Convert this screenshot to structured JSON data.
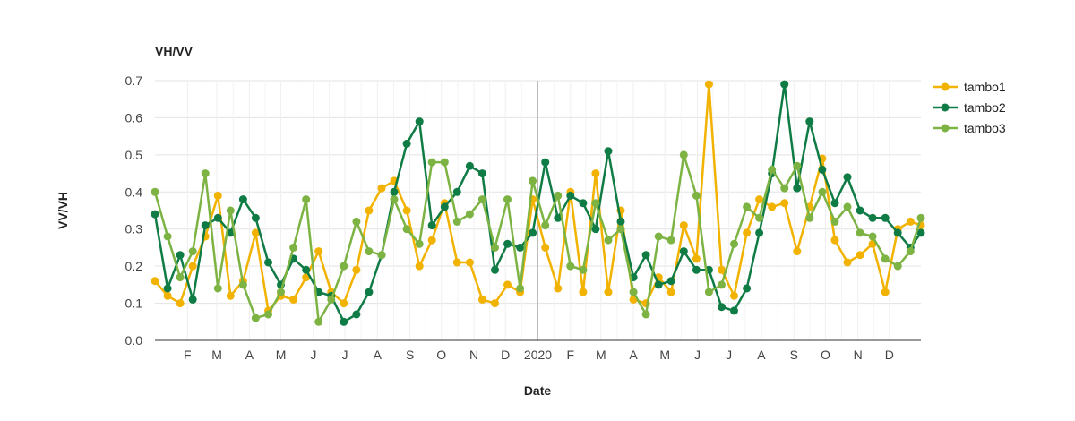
{
  "chart_data": {
    "type": "line",
    "title": "VH/VV",
    "xlabel": "Date",
    "ylabel": "VV/VH",
    "ylim": [
      0,
      0.7
    ],
    "yticks": [
      "0.0",
      "0.1",
      "0.2",
      "0.3",
      "0.4",
      "0.5",
      "0.6",
      "0.7"
    ],
    "xlim": [
      "2019-01-01",
      "2020-12-31"
    ],
    "xticks": [
      {
        "label": "F",
        "date": "2019-02-01"
      },
      {
        "label": "M",
        "date": "2019-03-01"
      },
      {
        "label": "A",
        "date": "2019-04-01"
      },
      {
        "label": "M",
        "date": "2019-05-01"
      },
      {
        "label": "J",
        "date": "2019-06-01"
      },
      {
        "label": "J",
        "date": "2019-07-01"
      },
      {
        "label": "A",
        "date": "2019-08-01"
      },
      {
        "label": "S",
        "date": "2019-09-01"
      },
      {
        "label": "O",
        "date": "2019-10-01"
      },
      {
        "label": "N",
        "date": "2019-11-01"
      },
      {
        "label": "D",
        "date": "2019-12-01"
      },
      {
        "label": "2020",
        "date": "2020-01-01"
      },
      {
        "label": "F",
        "date": "2020-02-01"
      },
      {
        "label": "M",
        "date": "2020-03-01"
      },
      {
        "label": "A",
        "date": "2020-04-01"
      },
      {
        "label": "M",
        "date": "2020-05-01"
      },
      {
        "label": "J",
        "date": "2020-06-01"
      },
      {
        "label": "J",
        "date": "2020-07-01"
      },
      {
        "label": "A",
        "date": "2020-08-01"
      },
      {
        "label": "S",
        "date": "2020-09-01"
      },
      {
        "label": "O",
        "date": "2020-10-01"
      },
      {
        "label": "N",
        "date": "2020-11-01"
      },
      {
        "label": "D",
        "date": "2020-12-01"
      }
    ],
    "grid": true,
    "legend_position": "right-top",
    "series": [
      {
        "name": "tambo1",
        "color": "#f2b200",
        "x": [
          "2019-01-01",
          "2019-01-13",
          "2019-01-25",
          "2019-02-06",
          "2019-02-18",
          "2019-03-02",
          "2019-03-14",
          "2019-03-26",
          "2019-04-07",
          "2019-04-19",
          "2019-05-01",
          "2019-05-13",
          "2019-05-25",
          "2019-06-06",
          "2019-06-18",
          "2019-06-30",
          "2019-07-12",
          "2019-07-24",
          "2019-08-05",
          "2019-08-17",
          "2019-08-29",
          "2019-09-10",
          "2019-09-22",
          "2019-10-04",
          "2019-10-16",
          "2019-10-28",
          "2019-11-09",
          "2019-11-21",
          "2019-12-03",
          "2019-12-15",
          "2019-12-27",
          "2020-01-08",
          "2020-01-20",
          "2020-02-01",
          "2020-02-13",
          "2020-02-25",
          "2020-03-08",
          "2020-03-20",
          "2020-04-01",
          "2020-04-13",
          "2020-04-25",
          "2020-05-07",
          "2020-05-19",
          "2020-05-31",
          "2020-06-12",
          "2020-06-24",
          "2020-07-06",
          "2020-07-18",
          "2020-07-30",
          "2020-08-11",
          "2020-08-23",
          "2020-09-04",
          "2020-09-16",
          "2020-09-28",
          "2020-10-10",
          "2020-10-22",
          "2020-11-03",
          "2020-11-15",
          "2020-11-27",
          "2020-12-09",
          "2020-12-21",
          "2020-12-31"
        ],
        "y": [
          0.16,
          0.12,
          0.1,
          0.2,
          0.28,
          0.39,
          0.12,
          0.16,
          0.29,
          0.08,
          0.12,
          0.11,
          0.17,
          0.24,
          0.13,
          0.1,
          0.19,
          0.35,
          0.41,
          0.43,
          0.35,
          0.2,
          0.27,
          0.37,
          0.21,
          0.21,
          0.11,
          0.1,
          0.15,
          0.13,
          0.38,
          0.25,
          0.14,
          0.4,
          0.13,
          0.45,
          0.13,
          0.35,
          0.11,
          0.1,
          0.17,
          0.13,
          0.31,
          0.22,
          0.69,
          0.19,
          0.12,
          0.29,
          0.38,
          0.36,
          0.37,
          0.24,
          0.36,
          0.49,
          0.27,
          0.21,
          0.23,
          0.26,
          0.13,
          0.3,
          0.32,
          0.31
        ]
      },
      {
        "name": "tambo2",
        "color": "#0f7b45",
        "x": [
          "2019-01-01",
          "2019-01-13",
          "2019-01-25",
          "2019-02-06",
          "2019-02-18",
          "2019-03-02",
          "2019-03-14",
          "2019-03-26",
          "2019-04-07",
          "2019-04-19",
          "2019-05-01",
          "2019-05-13",
          "2019-05-25",
          "2019-06-06",
          "2019-06-18",
          "2019-06-30",
          "2019-07-12",
          "2019-07-24",
          "2019-08-05",
          "2019-08-17",
          "2019-08-29",
          "2019-09-10",
          "2019-09-22",
          "2019-10-04",
          "2019-10-16",
          "2019-10-28",
          "2019-11-09",
          "2019-11-21",
          "2019-12-03",
          "2019-12-15",
          "2019-12-27",
          "2020-01-08",
          "2020-01-20",
          "2020-02-01",
          "2020-02-13",
          "2020-02-25",
          "2020-03-08",
          "2020-03-20",
          "2020-04-01",
          "2020-04-13",
          "2020-04-25",
          "2020-05-07",
          "2020-05-19",
          "2020-05-31",
          "2020-06-12",
          "2020-06-24",
          "2020-07-06",
          "2020-07-18",
          "2020-07-30",
          "2020-08-11",
          "2020-08-23",
          "2020-09-04",
          "2020-09-16",
          "2020-09-28",
          "2020-10-10",
          "2020-10-22",
          "2020-11-03",
          "2020-11-15",
          "2020-11-27",
          "2020-12-09",
          "2020-12-21",
          "2020-12-31"
        ],
        "y": [
          0.34,
          0.14,
          0.23,
          0.11,
          0.31,
          0.33,
          0.29,
          0.38,
          0.33,
          0.21,
          0.15,
          0.22,
          0.19,
          0.13,
          0.12,
          0.05,
          0.07,
          0.13,
          0.23,
          0.4,
          0.53,
          0.59,
          0.31,
          0.36,
          0.4,
          0.47,
          0.45,
          0.19,
          0.26,
          0.25,
          0.29,
          0.48,
          0.33,
          0.39,
          0.37,
          0.3,
          0.51,
          0.32,
          0.17,
          0.23,
          0.15,
          0.16,
          0.24,
          0.19,
          0.19,
          0.09,
          0.08,
          0.14,
          0.29,
          0.45,
          0.69,
          0.41,
          0.59,
          0.46,
          0.37,
          0.44,
          0.35,
          0.33,
          0.33,
          0.29,
          0.25,
          0.29
        ]
      },
      {
        "name": "tambo3",
        "color": "#7cb342",
        "x": [
          "2019-01-01",
          "2019-01-13",
          "2019-01-25",
          "2019-02-06",
          "2019-02-18",
          "2019-03-02",
          "2019-03-14",
          "2019-03-26",
          "2019-04-07",
          "2019-04-19",
          "2019-05-01",
          "2019-05-13",
          "2019-05-25",
          "2019-06-06",
          "2019-06-18",
          "2019-06-30",
          "2019-07-12",
          "2019-07-24",
          "2019-08-05",
          "2019-08-17",
          "2019-08-29",
          "2019-09-10",
          "2019-09-22",
          "2019-10-04",
          "2019-10-16",
          "2019-10-28",
          "2019-11-09",
          "2019-11-21",
          "2019-12-03",
          "2019-12-15",
          "2019-12-27",
          "2020-01-08",
          "2020-01-20",
          "2020-02-01",
          "2020-02-13",
          "2020-02-25",
          "2020-03-08",
          "2020-03-20",
          "2020-04-01",
          "2020-04-13",
          "2020-04-25",
          "2020-05-07",
          "2020-05-19",
          "2020-05-31",
          "2020-06-12",
          "2020-06-24",
          "2020-07-06",
          "2020-07-18",
          "2020-07-30",
          "2020-08-11",
          "2020-08-23",
          "2020-09-04",
          "2020-09-16",
          "2020-09-28",
          "2020-10-10",
          "2020-10-22",
          "2020-11-03",
          "2020-11-15",
          "2020-11-27",
          "2020-12-09",
          "2020-12-21",
          "2020-12-31"
        ],
        "y": [
          0.4,
          0.28,
          0.17,
          0.24,
          0.45,
          0.14,
          0.35,
          0.15,
          0.06,
          0.07,
          0.13,
          0.25,
          0.38,
          0.05,
          0.11,
          0.2,
          0.32,
          0.24,
          0.23,
          0.38,
          0.3,
          0.26,
          0.48,
          0.48,
          0.32,
          0.34,
          0.38,
          0.25,
          0.38,
          0.14,
          0.43,
          0.31,
          0.39,
          0.2,
          0.19,
          0.37,
          0.27,
          0.3,
          0.13,
          0.07,
          0.28,
          0.27,
          0.5,
          0.39,
          0.13,
          0.15,
          0.26,
          0.36,
          0.33,
          0.46,
          0.41,
          0.47,
          0.33,
          0.4,
          0.32,
          0.36,
          0.29,
          0.28,
          0.22,
          0.2,
          0.24,
          0.33
        ]
      }
    ]
  }
}
